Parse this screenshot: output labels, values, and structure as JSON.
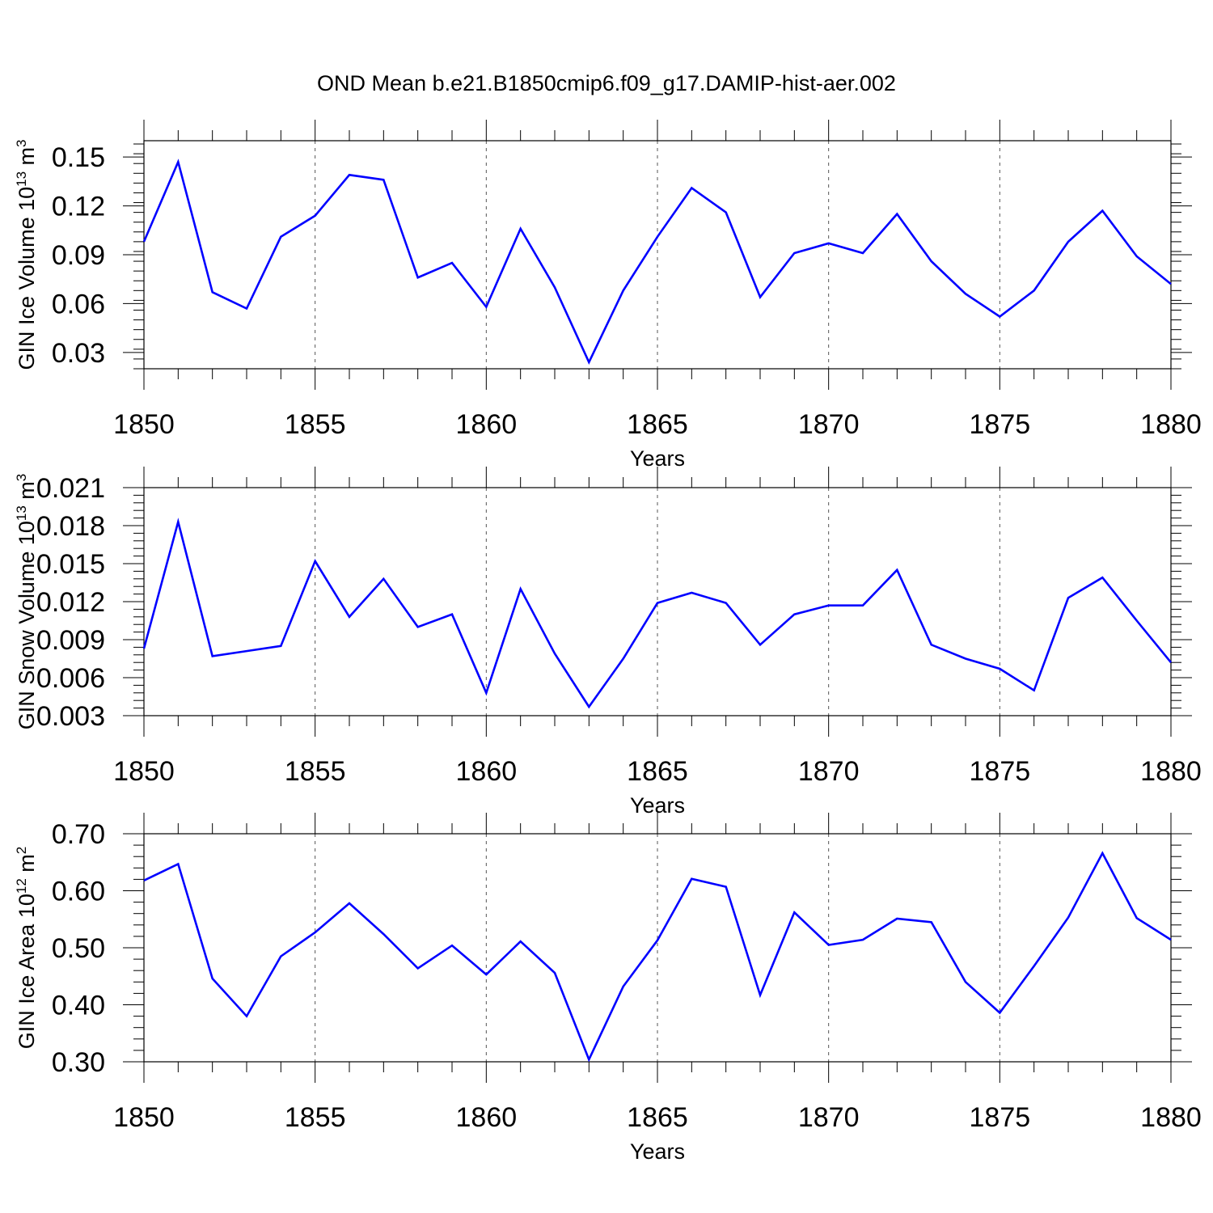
{
  "figure": {
    "title": "OND Mean b.e21.B1850cmip6.f09_g17.DAMIP-hist-aer.002"
  },
  "chart_data": [
    {
      "type": "line",
      "xlabel": "Years",
      "ylabel": {
        "text": "GIN Ice Volume 10",
        "sup": "13",
        "unit": " m",
        "unit_sup": "3"
      },
      "xlim": [
        1850,
        1880
      ],
      "ylim": [
        0.02,
        0.16
      ],
      "xticks": [
        "1850",
        "1855",
        "1860",
        "1865",
        "1870",
        "1875",
        "1880"
      ],
      "yticks": [
        "0.03",
        "0.06",
        "0.09",
        "0.12",
        "0.15"
      ],
      "x": [
        1850,
        1851,
        1852,
        1853,
        1854,
        1855,
        1856,
        1857,
        1858,
        1859,
        1860,
        1861,
        1862,
        1863,
        1864,
        1865,
        1866,
        1867,
        1868,
        1869,
        1870,
        1871,
        1872,
        1873,
        1874,
        1875,
        1876,
        1877,
        1878,
        1879,
        1880
      ],
      "series": [
        {
          "values": [
            0.098,
            0.147,
            0.067,
            0.057,
            0.101,
            0.114,
            0.139,
            0.136,
            0.076,
            0.085,
            0.058,
            0.106,
            0.07,
            0.024,
            0.068,
            0.101,
            0.131,
            0.116,
            0.064,
            0.091,
            0.097,
            0.091,
            0.115,
            0.086,
            0.066,
            0.052,
            0.068,
            0.098,
            0.117,
            0.089,
            0.072
          ],
          "color": "#0000ff"
        }
      ],
      "grid": "vertical dashed at major x ticks"
    },
    {
      "type": "line",
      "xlabel": "Years",
      "ylabel": {
        "text": "GIN Snow Volume 10",
        "sup": "13",
        "unit": " m",
        "unit_sup": "3"
      },
      "xlim": [
        1850,
        1880
      ],
      "ylim": [
        0.003,
        0.021
      ],
      "xticks": [
        "1850",
        "1855",
        "1860",
        "1865",
        "1870",
        "1875",
        "1880"
      ],
      "yticks": [
        "0.003",
        "0.006",
        "0.009",
        "0.012",
        "0.015",
        "0.018",
        "0.021"
      ],
      "x": [
        1850,
        1851,
        1852,
        1853,
        1854,
        1855,
        1856,
        1857,
        1858,
        1859,
        1860,
        1861,
        1862,
        1863,
        1864,
        1865,
        1866,
        1867,
        1868,
        1869,
        1870,
        1871,
        1872,
        1873,
        1874,
        1875,
        1876,
        1877,
        1878,
        1879,
        1880
      ],
      "series": [
        {
          "values": [
            0.0083,
            0.0183,
            0.0077,
            0.0081,
            0.0085,
            0.0152,
            0.0108,
            0.0138,
            0.01,
            0.011,
            0.0048,
            0.013,
            0.0079,
            0.0037,
            0.0075,
            0.0119,
            0.0127,
            0.0119,
            0.0086,
            0.011,
            0.0117,
            0.0117,
            0.0145,
            0.0086,
            0.0075,
            0.0067,
            0.005,
            0.0123,
            0.0139,
            0.0105,
            0.0072
          ],
          "color": "#0000ff"
        }
      ],
      "grid": "vertical dashed at major x ticks"
    },
    {
      "type": "line",
      "xlabel": "Years",
      "ylabel": {
        "text": "GIN Ice Area 10",
        "sup": "12",
        "unit": " m",
        "unit_sup": "2"
      },
      "xlim": [
        1850,
        1880
      ],
      "ylim": [
        0.3,
        0.7
      ],
      "xticks": [
        "1850",
        "1855",
        "1860",
        "1865",
        "1870",
        "1875",
        "1880"
      ],
      "yticks": [
        "0.30",
        "0.40",
        "0.50",
        "0.60",
        "0.70"
      ],
      "x": [
        1850,
        1851,
        1852,
        1853,
        1854,
        1855,
        1856,
        1857,
        1858,
        1859,
        1860,
        1861,
        1862,
        1863,
        1864,
        1865,
        1866,
        1867,
        1868,
        1869,
        1870,
        1871,
        1872,
        1873,
        1874,
        1875,
        1876,
        1877,
        1878,
        1879,
        1880
      ],
      "series": [
        {
          "values": [
            0.618,
            0.647,
            0.446,
            0.38,
            0.485,
            0.527,
            0.578,
            0.524,
            0.464,
            0.504,
            0.453,
            0.511,
            0.456,
            0.304,
            0.432,
            0.513,
            0.621,
            0.607,
            0.417,
            0.562,
            0.505,
            0.514,
            0.551,
            0.545,
            0.44,
            0.386,
            0.468,
            0.553,
            0.666,
            0.552,
            0.514
          ],
          "color": "#0000ff"
        }
      ],
      "grid": "vertical dashed at major x ticks"
    }
  ]
}
